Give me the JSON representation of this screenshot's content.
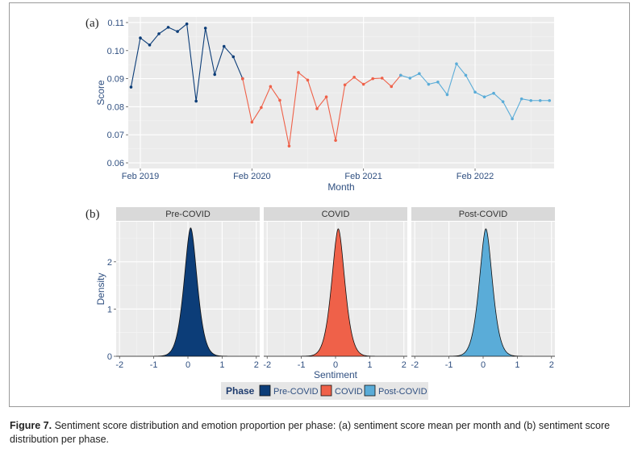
{
  "caption": {
    "label": "Figure 7.",
    "text": " Sentiment score distribution and emotion proportion per phase: (a) sentiment score mean per month and (b) sentiment score distribution per phase."
  },
  "colors": {
    "Pre-COVID": "#0c3d78",
    "COVID": "#ef6149",
    "Post-COVID": "#5aacd8"
  },
  "chart_data": [
    {
      "type": "line",
      "tag": "(a)",
      "xlabel": "Month",
      "ylabel": "Score",
      "ylim": [
        0.058,
        0.112
      ],
      "yticks": [
        0.06,
        0.07,
        0.08,
        0.09,
        0.1,
        0.11
      ],
      "ytick_labels": [
        "0.06",
        "0.07",
        "0.08",
        "0.09",
        "0.10",
        "0.11"
      ],
      "xlim": [
        "2019-01",
        "2022-12"
      ],
      "xticks": [
        "2019-02",
        "2020-02",
        "2021-02",
        "2022-02"
      ],
      "xtick_labels": [
        "Feb 2019",
        "Feb 2020",
        "Feb 2021",
        "Feb 2022"
      ],
      "grid": true,
      "series": [
        {
          "name": "Pre-COVID",
          "x": [
            "2019-01",
            "2019-02",
            "2019-03",
            "2019-04",
            "2019-05",
            "2019-06",
            "2019-07",
            "2019-08",
            "2019-09",
            "2019-10",
            "2019-11",
            "2019-12",
            "2020-01"
          ],
          "y": [
            0.087,
            0.1045,
            0.102,
            0.106,
            0.1083,
            0.1068,
            0.1095,
            0.082,
            0.108,
            0.0915,
            0.1015,
            0.0978,
            0.09
          ]
        },
        {
          "name": "COVID",
          "x": [
            "2020-01",
            "2020-02",
            "2020-03",
            "2020-04",
            "2020-05",
            "2020-06",
            "2020-07",
            "2020-08",
            "2020-09",
            "2020-10",
            "2020-11",
            "2020-12",
            "2021-01",
            "2021-02",
            "2021-03",
            "2021-04",
            "2021-05",
            "2021-06"
          ],
          "y": [
            0.09,
            0.0745,
            0.0797,
            0.0872,
            0.0823,
            0.066,
            0.0922,
            0.0895,
            0.0793,
            0.0835,
            0.068,
            0.0878,
            0.0905,
            0.088,
            0.09,
            0.0902,
            0.0872,
            0.0912
          ]
        },
        {
          "name": "Post-COVID",
          "x": [
            "2021-06",
            "2021-07",
            "2021-08",
            "2021-09",
            "2021-10",
            "2021-11",
            "2021-12",
            "2022-01",
            "2022-02",
            "2022-03",
            "2022-04",
            "2022-05",
            "2022-06",
            "2022-07",
            "2022-08",
            "2022-09",
            "2022-10"
          ],
          "y": [
            0.0912,
            0.0902,
            0.0918,
            0.088,
            0.0888,
            0.0843,
            0.0953,
            0.0912,
            0.0852,
            0.0835,
            0.0848,
            0.0818,
            0.0757,
            0.0828,
            0.0822,
            0.0822,
            0.0822
          ]
        }
      ]
    },
    {
      "type": "area",
      "tag": "(b)",
      "xlabel": "Sentiment",
      "ylabel": "Density",
      "xlim": [
        -2.1,
        2.1
      ],
      "ylim": [
        0,
        2.85
      ],
      "xticks": [
        -2,
        -1,
        0,
        1,
        2
      ],
      "xtick_labels": [
        "-2",
        "-1",
        "0",
        "1",
        "2"
      ],
      "yticks": [
        0,
        1,
        2
      ],
      "ytick_labels": [
        "0",
        "1",
        "2"
      ],
      "grid": true,
      "legend": {
        "title": "Phase",
        "placement": "bottom",
        "entries": [
          "Pre-COVID",
          "COVID",
          "Post-COVID"
        ]
      },
      "facets": [
        {
          "name": "Pre-COVID",
          "peak_x": 0.08,
          "peak_density": 2.72,
          "spread": 0.16
        },
        {
          "name": "COVID",
          "peak_x": 0.08,
          "peak_density": 2.7,
          "spread": 0.16
        },
        {
          "name": "Post-COVID",
          "peak_x": 0.08,
          "peak_density": 2.7,
          "spread": 0.16
        }
      ]
    }
  ]
}
